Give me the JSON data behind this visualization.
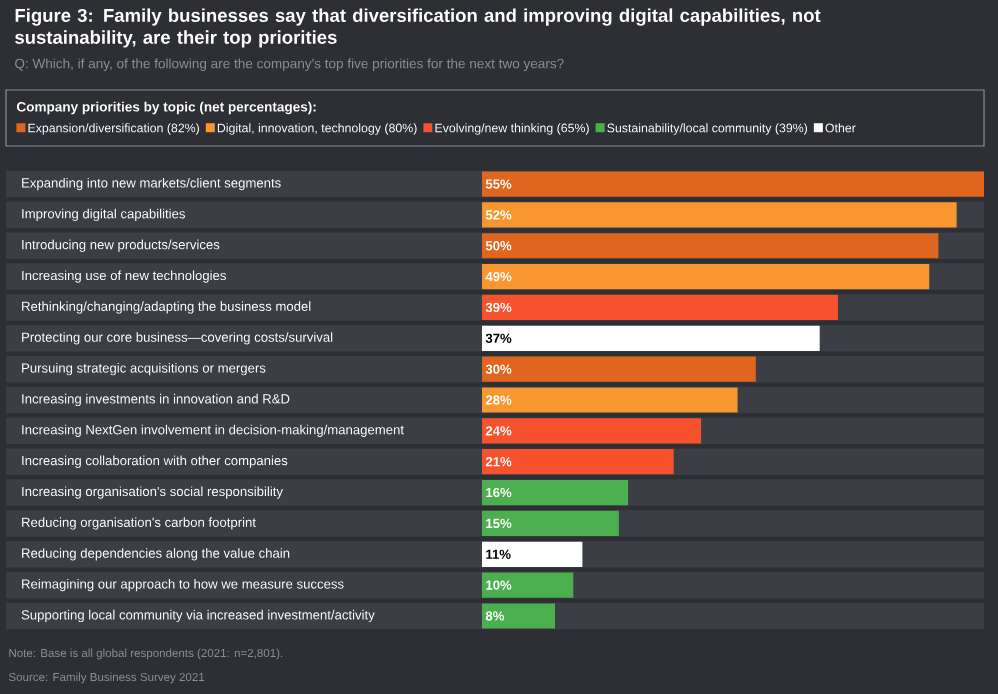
{
  "chart_data": {
    "type": "bar",
    "orientation": "horizontal",
    "title": "Figure 3: Family businesses say that diversification and improving digital capabilities, not sustainability, are their top priorities",
    "subtitle": "Q: Which, if any, of the following are the company's top five priorities for the next two years?",
    "legend_title": "Company priorities by topic (net percentages):",
    "legend": "top",
    "categories": [
      "Expanding into new markets/client segments",
      "Improving digital capabilities",
      "Introducing new products/services",
      "Increasing use of new technologies",
      "Rethinking/changing/adapting the business model",
      "Protecting our core business—covering costs/survival",
      "Pursuing strategic acquisitions or mergers",
      "Increasing investments in innovation and R&D",
      "Increasing NextGen involvement in decision-making/management",
      "Increasing collaboration with other companies",
      "Increasing organisation's social responsibility",
      "Reducing organisation's carbon footprint",
      "Reducing dependencies along the value chain",
      "Reimagining our approach to how we measure success",
      "Supporting local community via increased investment/activity"
    ],
    "series": [
      {
        "name": "Expansion/diversification (82%)",
        "color": "#e0661f",
        "values": [
          55,
          null,
          50,
          null,
          null,
          null,
          30,
          null,
          null,
          null,
          null,
          null,
          null,
          null,
          null
        ],
        "value_labels": [
          "55%",
          null,
          "50%",
          null,
          null,
          null,
          "30%",
          null,
          null,
          null,
          null,
          null,
          null,
          null,
          null
        ]
      },
      {
        "name": "Digital, innovation, technology (80%)",
        "color": "#f8972f",
        "values": [
          null,
          52,
          null,
          49,
          null,
          null,
          null,
          28,
          null,
          null,
          null,
          null,
          null,
          null,
          null
        ],
        "value_labels": [
          null,
          "52%",
          null,
          "49%",
          null,
          null,
          null,
          "28%",
          null,
          null,
          null,
          null,
          null,
          null,
          null
        ]
      },
      {
        "name": "Evolving/new thinking (65%)",
        "color": "#f5522d",
        "values": [
          null,
          null,
          null,
          null,
          39,
          null,
          null,
          null,
          24,
          21,
          null,
          null,
          null,
          null,
          null
        ],
        "value_labels": [
          null,
          null,
          null,
          null,
          "39%",
          null,
          null,
          null,
          "24%",
          "21%",
          null,
          null,
          null,
          null,
          null
        ]
      },
      {
        "name": "Sustainability/local community (39%)",
        "color": "#4caf4f",
        "values": [
          null,
          null,
          null,
          null,
          null,
          null,
          null,
          null,
          null,
          null,
          16,
          15,
          null,
          10,
          8
        ],
        "value_labels": [
          null,
          null,
          null,
          null,
          null,
          null,
          null,
          null,
          null,
          null,
          "16%",
          "15%",
          null,
          "10%",
          "8%"
        ]
      },
      {
        "name": "Other",
        "color": "#ffffff",
        "values": [
          null,
          null,
          null,
          null,
          null,
          37,
          null,
          null,
          null,
          null,
          null,
          null,
          11,
          null,
          null
        ],
        "value_labels": [
          null,
          null,
          null,
          null,
          null,
          "37%",
          null,
          null,
          null,
          null,
          null,
          null,
          "11%",
          null,
          null
        ]
      }
    ],
    "annotations": [
      "Note: Base is all global respondents (2021: n=2,801).",
      "Source: Family Business Survey 2021"
    ]
  }
}
